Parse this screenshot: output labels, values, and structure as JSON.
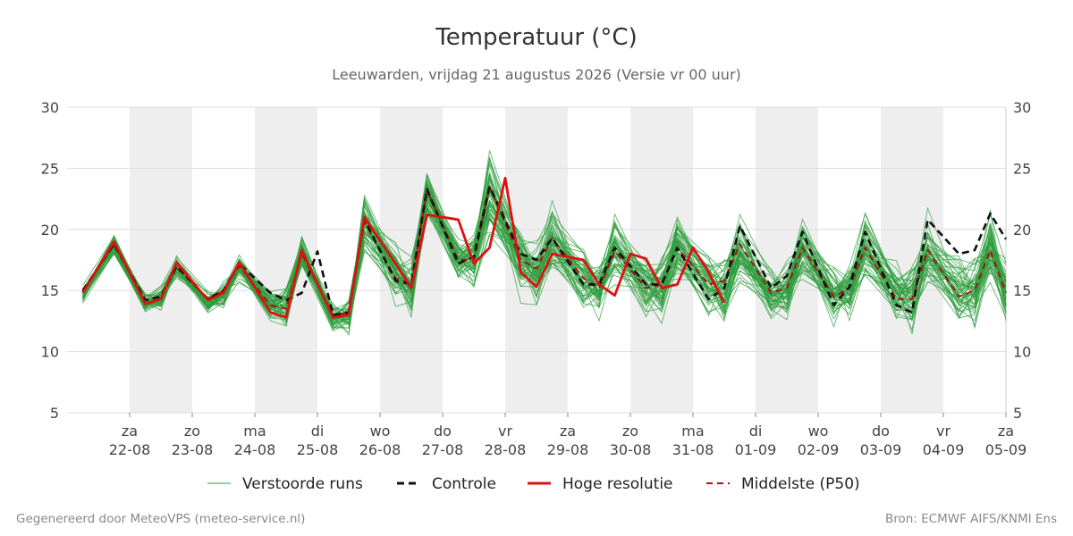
{
  "chart_data": {
    "type": "line",
    "title": "Temperatuur (°C)",
    "subtitle": "Leeuwarden, vrijdag 21 augustus 2026 (Versie vr 00 uur)",
    "xlabel": "",
    "ylabel": "",
    "ylim": [
      5,
      30
    ],
    "yticks": [
      5,
      10,
      15,
      20,
      25,
      30
    ],
    "grid": true,
    "shaded_days": "weekly alternating day bands (za, ma, wo, vr, zo, di, do)",
    "legend_position": "bottom-center",
    "x_start": "2026-08-21T00:00",
    "x_end": "2026-09-05T00:00",
    "x_ticks": [
      {
        "date": "2026-08-22",
        "day": "za",
        "label": "22-08"
      },
      {
        "date": "2026-08-23",
        "day": "zo",
        "label": "23-08"
      },
      {
        "date": "2026-08-24",
        "day": "ma",
        "label": "24-08"
      },
      {
        "date": "2026-08-25",
        "day": "di",
        "label": "25-08"
      },
      {
        "date": "2026-08-26",
        "day": "wo",
        "label": "26-08"
      },
      {
        "date": "2026-08-27",
        "day": "do",
        "label": "27-08"
      },
      {
        "date": "2026-08-28",
        "day": "vr",
        "label": "28-08"
      },
      {
        "date": "2026-08-29",
        "day": "za",
        "label": "29-08"
      },
      {
        "date": "2026-08-30",
        "day": "zo",
        "label": "30-08"
      },
      {
        "date": "2026-08-31",
        "day": "ma",
        "label": "31-08"
      },
      {
        "date": "2026-09-01",
        "day": "di",
        "label": "01-09"
      },
      {
        "date": "2026-09-02",
        "day": "wo",
        "label": "02-09"
      },
      {
        "date": "2026-09-03",
        "day": "do",
        "label": "03-09"
      },
      {
        "date": "2026-09-04",
        "day": "vr",
        "label": "04-09"
      },
      {
        "date": "2026-09-05",
        "day": "za",
        "label": "05-09"
      }
    ],
    "series": [
      {
        "name": "Controle",
        "color": "#111111",
        "style": "dashed",
        "points": [
          [
            "2026-08-21T06:00",
            15.0
          ],
          [
            "2026-08-21T18:00",
            18.8
          ],
          [
            "2026-08-22T06:00",
            14.2
          ],
          [
            "2026-08-22T12:00",
            14.5
          ],
          [
            "2026-08-22T18:00",
            17.0
          ],
          [
            "2026-08-23T06:00",
            14.3
          ],
          [
            "2026-08-23T12:00",
            15.0
          ],
          [
            "2026-08-23T18:00",
            17.2
          ],
          [
            "2026-08-24T06:00",
            14.8
          ],
          [
            "2026-08-24T12:00",
            14.2
          ],
          [
            "2026-08-24T18:00",
            14.8
          ],
          [
            "2026-08-25T00:00",
            18.2
          ],
          [
            "2026-08-25T06:00",
            13.0
          ],
          [
            "2026-08-25T12:00",
            13.2
          ],
          [
            "2026-08-25T18:00",
            20.8
          ],
          [
            "2026-08-26T06:00",
            15.8
          ],
          [
            "2026-08-26T12:00",
            15.5
          ],
          [
            "2026-08-26T18:00",
            23.3
          ],
          [
            "2026-08-27T06:00",
            17.2
          ],
          [
            "2026-08-27T12:00",
            17.8
          ],
          [
            "2026-08-27T18:00",
            23.5
          ],
          [
            "2026-08-28T06:00",
            18.0
          ],
          [
            "2026-08-28T12:00",
            17.5
          ],
          [
            "2026-08-28T18:00",
            19.3
          ],
          [
            "2026-08-29T06:00",
            15.5
          ],
          [
            "2026-08-29T12:00",
            15.5
          ],
          [
            "2026-08-29T18:00",
            18.5
          ],
          [
            "2026-08-30T06:00",
            15.5
          ],
          [
            "2026-08-30T12:00",
            15.5
          ],
          [
            "2026-08-30T18:00",
            18.5
          ],
          [
            "2026-08-31T06:00",
            14.3
          ],
          [
            "2026-08-31T12:00",
            15.2
          ],
          [
            "2026-08-31T18:00",
            20.3
          ],
          [
            "2026-09-01T06:00",
            15.2
          ],
          [
            "2026-09-01T12:00",
            16.2
          ],
          [
            "2026-09-01T18:00",
            19.8
          ],
          [
            "2026-09-02T06:00",
            13.8
          ],
          [
            "2026-09-02T12:00",
            15.3
          ],
          [
            "2026-09-02T18:00",
            19.8
          ],
          [
            "2026-09-03T06:00",
            13.8
          ],
          [
            "2026-09-03T12:00",
            13.2
          ],
          [
            "2026-09-03T18:00",
            20.8
          ],
          [
            "2026-09-04T06:00",
            18.0
          ],
          [
            "2026-09-04T12:00",
            18.3
          ],
          [
            "2026-09-04T18:00",
            21.3
          ],
          [
            "2026-09-05T00:00",
            19.2
          ]
        ]
      },
      {
        "name": "Hoge resolutie",
        "color": "#dd1111",
        "style": "solid",
        "points": [
          [
            "2026-08-21T06:00",
            14.8
          ],
          [
            "2026-08-21T18:00",
            19.0
          ],
          [
            "2026-08-22T06:00",
            13.9
          ],
          [
            "2026-08-22T12:00",
            14.3
          ],
          [
            "2026-08-22T18:00",
            17.3
          ],
          [
            "2026-08-23T06:00",
            14.2
          ],
          [
            "2026-08-23T12:00",
            14.8
          ],
          [
            "2026-08-23T18:00",
            17.3
          ],
          [
            "2026-08-24T06:00",
            13.2
          ],
          [
            "2026-08-24T12:00",
            12.8
          ],
          [
            "2026-08-24T18:00",
            18.3
          ],
          [
            "2026-08-25T06:00",
            12.8
          ],
          [
            "2026-08-25T12:00",
            13.0
          ],
          [
            "2026-08-25T18:00",
            21.0
          ],
          [
            "2026-08-26T06:00",
            17.2
          ],
          [
            "2026-08-26T12:00",
            15.2
          ],
          [
            "2026-08-26T18:00",
            21.2
          ],
          [
            "2026-08-27T06:00",
            20.8
          ],
          [
            "2026-08-27T12:00",
            17.2
          ],
          [
            "2026-08-27T18:00",
            18.5
          ],
          [
            "2026-08-28T00:00",
            24.2
          ],
          [
            "2026-08-28T06:00",
            16.5
          ],
          [
            "2026-08-28T12:00",
            15.3
          ],
          [
            "2026-08-28T18:00",
            18.0
          ],
          [
            "2026-08-29T06:00",
            17.5
          ],
          [
            "2026-08-29T12:00",
            15.5
          ],
          [
            "2026-08-29T18:00",
            14.6
          ],
          [
            "2026-08-30T00:00",
            18.0
          ],
          [
            "2026-08-30T06:00",
            17.6
          ],
          [
            "2026-08-30T12:00",
            15.2
          ],
          [
            "2026-08-30T18:00",
            15.5
          ],
          [
            "2026-08-31T00:00",
            18.5
          ],
          [
            "2026-08-31T06:00",
            16.5
          ],
          [
            "2026-08-31T12:00",
            14.0
          ]
        ]
      },
      {
        "name": "Middelste (P50)",
        "color": "#aa1111",
        "style": "dashed",
        "points": [
          [
            "2026-08-21T06:00",
            15.0
          ],
          [
            "2026-08-21T18:00",
            18.8
          ],
          [
            "2026-08-22T06:00",
            14.2
          ],
          [
            "2026-08-22T12:00",
            14.5
          ],
          [
            "2026-08-22T18:00",
            16.9
          ],
          [
            "2026-08-23T06:00",
            14.3
          ],
          [
            "2026-08-23T12:00",
            15.0
          ],
          [
            "2026-08-23T18:00",
            17.0
          ],
          [
            "2026-08-24T06:00",
            13.8
          ],
          [
            "2026-08-24T12:00",
            13.5
          ],
          [
            "2026-08-24T18:00",
            18.0
          ],
          [
            "2026-08-25T06:00",
            13.0
          ],
          [
            "2026-08-25T12:00",
            13.2
          ],
          [
            "2026-08-25T18:00",
            20.6
          ],
          [
            "2026-08-26T06:00",
            16.0
          ],
          [
            "2026-08-26T12:00",
            15.6
          ],
          [
            "2026-08-26T18:00",
            23.2
          ],
          [
            "2026-08-27T06:00",
            17.5
          ],
          [
            "2026-08-27T12:00",
            17.5
          ],
          [
            "2026-08-27T18:00",
            23.5
          ],
          [
            "2026-08-28T06:00",
            17.5
          ],
          [
            "2026-08-28T12:00",
            16.8
          ],
          [
            "2026-08-28T18:00",
            19.3
          ],
          [
            "2026-08-29T06:00",
            16.0
          ],
          [
            "2026-08-29T12:00",
            15.2
          ],
          [
            "2026-08-29T18:00",
            18.2
          ],
          [
            "2026-08-30T06:00",
            15.2
          ],
          [
            "2026-08-30T12:00",
            15.5
          ],
          [
            "2026-08-30T18:00",
            18.5
          ],
          [
            "2026-08-31T06:00",
            15.5
          ],
          [
            "2026-08-31T12:00",
            15.8
          ],
          [
            "2026-08-31T18:00",
            18.8
          ],
          [
            "2026-09-01T06:00",
            14.8
          ],
          [
            "2026-09-01T12:00",
            15.2
          ],
          [
            "2026-09-01T18:00",
            18.5
          ],
          [
            "2026-09-02T06:00",
            14.5
          ],
          [
            "2026-09-02T12:00",
            15.2
          ],
          [
            "2026-09-02T18:00",
            18.5
          ],
          [
            "2026-09-03T06:00",
            14.3
          ],
          [
            "2026-09-03T12:00",
            14.3
          ],
          [
            "2026-09-03T18:00",
            18.3
          ],
          [
            "2026-09-04T06:00",
            14.5
          ],
          [
            "2026-09-04T12:00",
            15.0
          ],
          [
            "2026-09-04T18:00",
            18.3
          ],
          [
            "2026-09-05T00:00",
            14.8
          ]
        ]
      }
    ],
    "ensemble": {
      "name": "Verstoorde runs",
      "color": "#2e9e3e",
      "member_count": 50,
      "x": [
        "2026-08-21T06:00",
        "2026-08-21T18:00",
        "2026-08-22T06:00",
        "2026-08-22T12:00",
        "2026-08-22T18:00",
        "2026-08-23T06:00",
        "2026-08-23T12:00",
        "2026-08-23T18:00",
        "2026-08-24T06:00",
        "2026-08-24T12:00",
        "2026-08-24T18:00",
        "2026-08-25T06:00",
        "2026-08-25T12:00",
        "2026-08-25T18:00",
        "2026-08-26T06:00",
        "2026-08-26T12:00",
        "2026-08-26T18:00",
        "2026-08-27T06:00",
        "2026-08-27T12:00",
        "2026-08-27T18:00",
        "2026-08-28T06:00",
        "2026-08-28T12:00",
        "2026-08-28T18:00",
        "2026-08-29T06:00",
        "2026-08-29T12:00",
        "2026-08-29T18:00",
        "2026-08-30T06:00",
        "2026-08-30T12:00",
        "2026-08-30T18:00",
        "2026-08-31T06:00",
        "2026-08-31T12:00",
        "2026-08-31T18:00",
        "2026-09-01T06:00",
        "2026-09-01T12:00",
        "2026-09-01T18:00",
        "2026-09-02T06:00",
        "2026-09-02T12:00",
        "2026-09-02T18:00",
        "2026-09-03T06:00",
        "2026-09-03T12:00",
        "2026-09-03T18:00",
        "2026-09-04T06:00",
        "2026-09-04T12:00",
        "2026-09-04T18:00",
        "2026-09-05T00:00"
      ],
      "median": [
        14.8,
        18.6,
        14.0,
        14.3,
        16.9,
        14.1,
        14.7,
        17.0,
        13.9,
        13.8,
        18.0,
        12.8,
        13.0,
        20.6,
        16.5,
        15.3,
        23.0,
        17.5,
        17.6,
        23.0,
        17.5,
        16.5,
        19.5,
        16.0,
        15.0,
        18.5,
        15.5,
        15.2,
        18.5,
        15.5,
        15.2,
        18.5,
        15.0,
        15.0,
        18.5,
        14.8,
        15.0,
        18.5,
        14.8,
        14.5,
        18.3,
        14.8,
        15.0,
        18.3,
        15.0
      ],
      "spread": [
        0.6,
        0.7,
        0.6,
        0.7,
        0.8,
        0.7,
        0.8,
        0.9,
        0.9,
        1.5,
        1.0,
        1.0,
        1.1,
        1.8,
        2.0,
        1.9,
        2.0,
        1.6,
        1.7,
        2.6,
        2.2,
        2.3,
        2.4,
        2.0,
        2.0,
        2.1,
        1.9,
        2.0,
        2.0,
        1.9,
        1.9,
        2.0,
        1.9,
        1.9,
        2.0,
        1.9,
        1.9,
        2.1,
        2.0,
        2.0,
        2.1,
        2.1,
        2.1,
        2.1,
        2.2
      ]
    }
  },
  "legend": [
    {
      "key": "ensemble",
      "label": "Verstoorde runs",
      "color": "#2e9e3e",
      "style": "thin"
    },
    {
      "key": "control",
      "label": "Controle",
      "color": "#111111",
      "style": "dashed"
    },
    {
      "key": "hires",
      "label": "Hoge resolutie",
      "color": "#dd1111",
      "style": "solid"
    },
    {
      "key": "p50",
      "label": "Middelste (P50)",
      "color": "#aa1111",
      "style": "dashed"
    }
  ],
  "footer": {
    "left": "Gegenereerd door MeteoVPS (meteo-service.nl)",
    "right": "Bron: ECMWF AIFS/KNMI Ens"
  },
  "colors": {
    "day_band": "#eeeeee",
    "grid": "#dddddd",
    "axis": "#cccccc"
  }
}
